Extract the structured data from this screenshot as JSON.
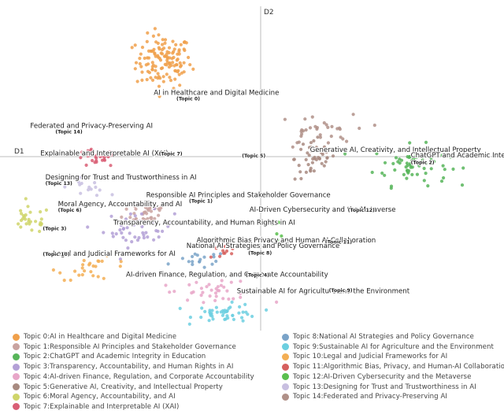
{
  "chart_data": {
    "type": "scatter",
    "title": "",
    "xlabel": "D1",
    "ylabel": "D2",
    "xlim": [
      -10,
      10
    ],
    "ylim": [
      -8.4,
      6.6
    ],
    "legend_position": "bottom",
    "topics": [
      {
        "id": 0,
        "name": "AI in Healthcare and Digital Medicine",
        "legend": "Topic 0:AI in Healthcare and Digital Medicine",
        "tag": "(Topic 0)",
        "color": "#f0a04b",
        "center": [
          -3.5,
          3.8
        ],
        "spread": [
          1.1,
          1.2
        ],
        "n": 130
      },
      {
        "id": 1,
        "name": "Responsible AI Principles and Stakeholder Governance",
        "legend": "Topic 1:Responsible AI Principles and Stakeholder Governance",
        "tag": "(Topic 1)",
        "color": "#c9a3a0",
        "center": [
          -4.2,
          -3.0
        ],
        "spread": [
          0.9,
          0.6
        ],
        "n": 35
      },
      {
        "id": 2,
        "name": "ChatGPT and Academic Integrity in Education",
        "legend": "Topic 2:ChatGPT and Academic Integrity in Education",
        "tag": "(Topic 2)",
        "color": "#57b55a",
        "center": [
          6.3,
          -0.9
        ],
        "spread": [
          1.5,
          0.9
        ],
        "n": 65
      },
      {
        "id": 3,
        "name": "Transparency, Accountability, and Human Rights in AI",
        "legend": "Topic 3:Transparency, Accountability, and Human Rights in AI",
        "tag": "(Topic 3)",
        "color": "#b3a0d6",
        "center": [
          -4.5,
          -3.8
        ],
        "spread": [
          1.4,
          0.8
        ],
        "n": 45
      },
      {
        "id": 4,
        "name": "AI-driven Finance, Regulation, and Corporate Accountability",
        "legend": "Topic 4:AI-driven Finance, Regulation, and Corporate Accountability",
        "tag": "(Topic 4)",
        "color": "#e8a6c8",
        "center": [
          -1.5,
          -6.6
        ],
        "spread": [
          2.2,
          0.4
        ],
        "n": 40
      },
      {
        "id": 5,
        "name": "Generative AI, Creativity, and Intellectual Property",
        "legend": "Topic 5:Generative AI, Creativity, and Intellectual Property",
        "tag": "(Topic 5)",
        "color": "#a88a80",
        "center": [
          2.5,
          -0.6
        ],
        "spread": [
          0.8,
          1.0
        ],
        "n": 45
      },
      {
        "id": 6,
        "name": "Moral Agency, Accountability, and AI",
        "legend": "Topic 6:Moral Agency, Accountability, and AI",
        "tag": "(Topic 6)",
        "color": "#cfd56a",
        "center": [
          -8.8,
          -3.4
        ],
        "spread": [
          0.8,
          0.6
        ],
        "n": 28
      },
      {
        "id": 7,
        "name": "Explainable and Interpretable AI (XAI)",
        "legend": "Topic 7:Explainable and Interpretable AI (XAI)",
        "tag": "(Topic 7)",
        "color": "#d95f76",
        "center": [
          -6.2,
          -0.6
        ],
        "spread": [
          0.8,
          0.4
        ],
        "n": 30
      },
      {
        "id": 8,
        "name": "National AI Strategies and Policy Governance",
        "legend": "Topic 8:National AI Strategies and Policy Governance",
        "tag": "(Topic 8)",
        "color": "#7aa3c8",
        "center": [
          -2.0,
          -5.2
        ],
        "spread": [
          1.0,
          0.4
        ],
        "n": 18
      },
      {
        "id": 9,
        "name": "Sustainable AI for Agriculture and the Environment",
        "legend": "Topic 9:Sustainable AI for Agriculture and the Environment",
        "tag": "(Topic 9)",
        "color": "#6ccfe0",
        "center": [
          -1.0,
          -7.6
        ],
        "spread": [
          1.3,
          0.4
        ],
        "n": 45
      },
      {
        "id": 10,
        "name": "Legal and Judicial Frameworks for AI",
        "legend": "Topic 10:Legal and Judicial Frameworks for AI",
        "tag": "(Topic 10)",
        "color": "#f3ae54",
        "center": [
          -6.2,
          -5.6
        ],
        "spread": [
          1.5,
          0.5
        ],
        "n": 25
      },
      {
        "id": 11,
        "name": "Algorithmic Bias Privacy and Human AI Collaboration",
        "legend": "Topic 11:Algorithmic Bias, Privacy, and Human-AI Collaboration",
        "tag": "(Topic 11)",
        "color": "#d6605e",
        "center": [
          -1.2,
          -4.8
        ],
        "spread": [
          0.6,
          0.4
        ],
        "n": 10
      },
      {
        "id": 12,
        "name": "AI-Driven Cybersecurity and the Metaverse",
        "legend": "Topic 12:AI-Driven Cybersecurity and the Metaverse",
        "tag": "(Topic 12)",
        "color": "#5bbf4e",
        "center": [
          1.0,
          -3.8
        ],
        "spread": [
          0.3,
          0.4
        ],
        "n": 6
      },
      {
        "id": 13,
        "name": "Designing for Trust and Trustworthiness in AI",
        "legend": "Topic 13:Designing for Trust and Trustworthiness in AI",
        "tag": "(Topic 13)",
        "color": "#c8bfe0",
        "center": [
          -6.5,
          -1.9
        ],
        "spread": [
          0.8,
          0.4
        ],
        "n": 15
      },
      {
        "id": 14,
        "name": "Federated and Privacy-Preserving AI",
        "legend": "Topic 14:Federated and Privacy-Preserving AI",
        "tag": "(Topic 14)",
        "color": "#b09088",
        "center": [
          2.5,
          0.6
        ],
        "spread": [
          1.5,
          0.8
        ],
        "n": 35
      }
    ],
    "annotations": [
      {
        "topic": 0,
        "title_xy": [
          -3.9,
          2.3
        ],
        "tag_xy": [
          -3.0,
          2.05
        ]
      },
      {
        "topic": 14,
        "title_xy": [
          -8.8,
          0.8
        ],
        "tag_xy": [
          -7.8,
          0.55
        ]
      },
      {
        "topic": 7,
        "title_xy": [
          -8.4,
          -0.45
        ],
        "tag_xy": [
          -3.7,
          -0.45
        ]
      },
      {
        "topic": 5,
        "title_xy": [
          2.3,
          -0.3
        ],
        "tag_xy": [
          -0.4,
          -0.55
        ]
      },
      {
        "topic": 2,
        "title_xy": [
          6.3,
          -0.55
        ],
        "tag_xy": [
          6.3,
          -0.85
        ]
      },
      {
        "topic": 13,
        "title_xy": [
          -8.2,
          -1.55
        ],
        "tag_xy": [
          -8.2,
          -1.8
        ]
      },
      {
        "topic": 1,
        "title_xy": [
          -4.2,
          -2.35
        ],
        "tag_xy": [
          -2.5,
          -2.6
        ]
      },
      {
        "topic": 6,
        "title_xy": [
          -7.7,
          -2.75
        ],
        "tag_xy": [
          -7.7,
          -3.0
        ]
      },
      {
        "topic": 12,
        "title_xy": [
          -0.1,
          -3.0
        ],
        "tag_xy": [
          3.8,
          -3.0
        ]
      },
      {
        "topic": 3,
        "title_xy": [
          -5.5,
          -3.6
        ],
        "tag_xy": [
          -8.3,
          -3.85
        ]
      },
      {
        "topic": 11,
        "title_xy": [
          -2.2,
          -4.4
        ],
        "tag_xy": [
          2.9,
          -4.45
        ]
      },
      {
        "topic": 8,
        "title_xy": [
          -2.6,
          -4.65
        ],
        "tag_xy": [
          -0.15,
          -4.95
        ]
      },
      {
        "topic": 10,
        "title_xy": [
          -7.9,
          -5.0
        ],
        "tag_xy": [
          -8.3,
          -5.0
        ]
      },
      {
        "topic": 4,
        "title_xy": [
          -5.0,
          -5.95
        ],
        "tag_xy": [
          -0.25,
          -5.95
        ]
      },
      {
        "topic": 9,
        "title_xy": [
          -0.6,
          -6.7
        ],
        "tag_xy": [
          3.05,
          -6.65
        ]
      }
    ]
  }
}
